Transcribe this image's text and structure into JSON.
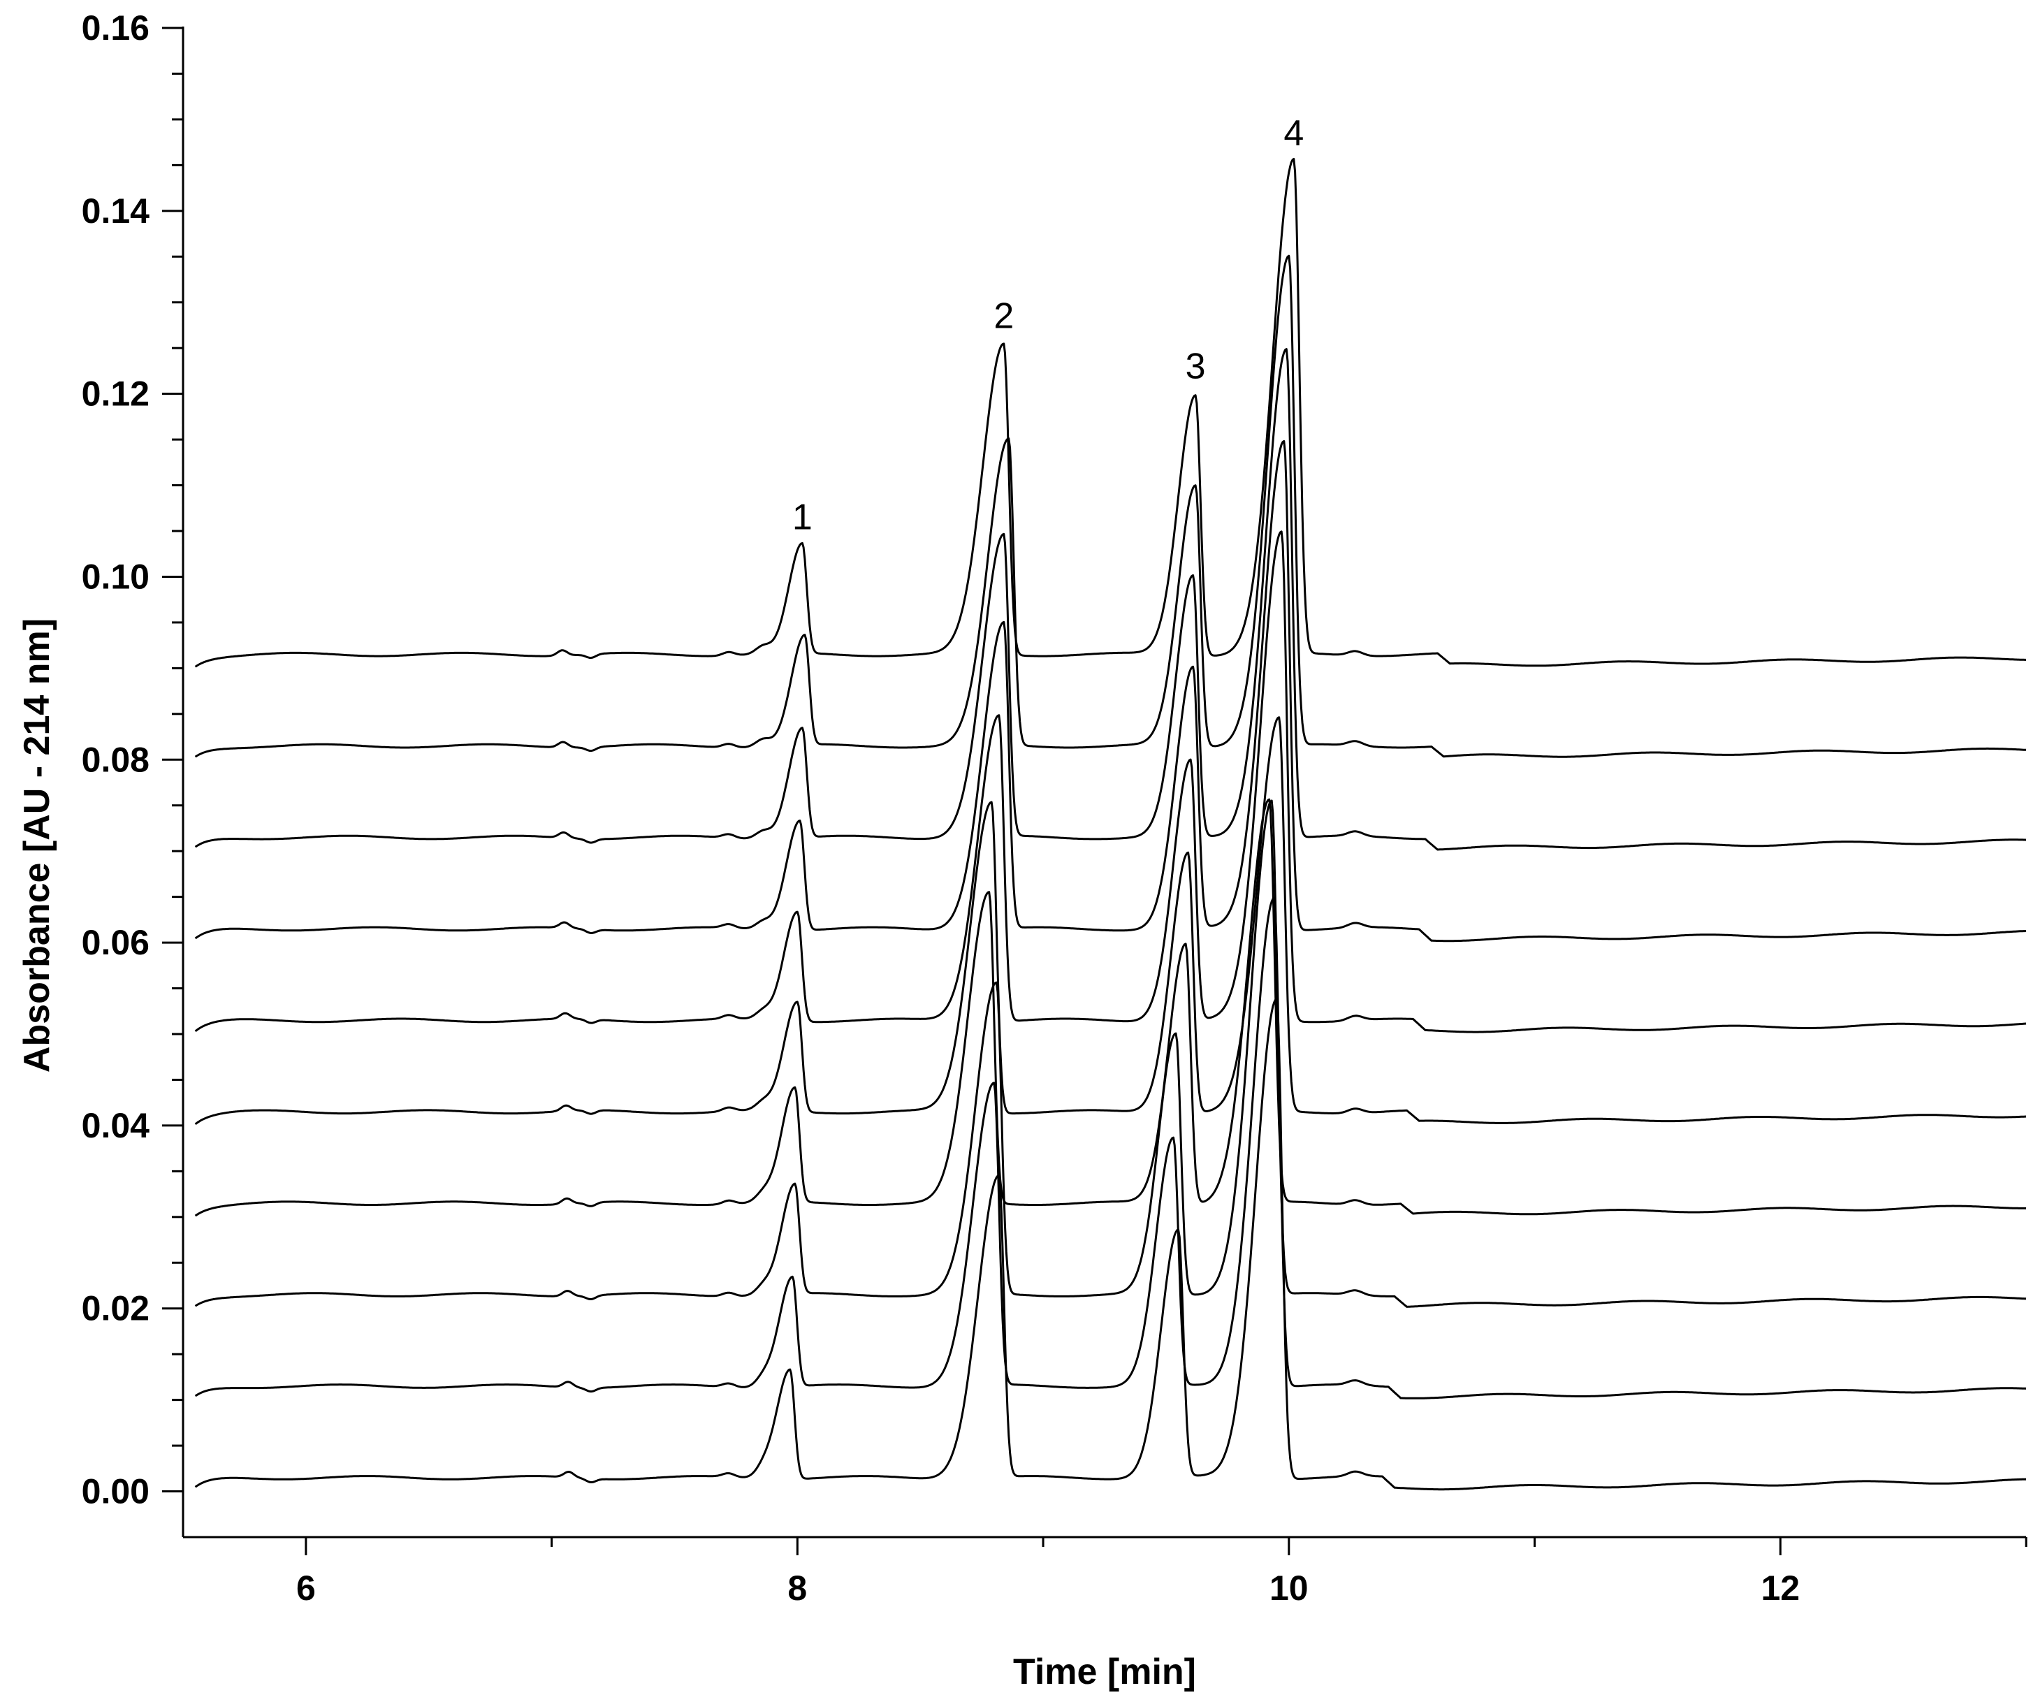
{
  "chart_data": {
    "type": "line",
    "title": "",
    "xlabel": "Time [min]",
    "ylabel": "Absorbance  [AU - 214 nm]",
    "xlim": [
      5.5,
      13.0
    ],
    "ylim": [
      -0.005,
      0.16
    ],
    "x_ticks": [
      "6",
      "8",
      "10",
      "12"
    ],
    "y_ticks": [
      "0.00",
      "0.02",
      "0.04",
      "0.06",
      "0.08",
      "0.10",
      "0.12",
      "0.14",
      "0.16"
    ],
    "grid": false,
    "legend": "none",
    "peak_labels": [
      {
        "label": "1",
        "x": 8.02
      },
      {
        "label": "2",
        "x": 8.84
      },
      {
        "label": "3",
        "x": 9.62
      },
      {
        "label": "4",
        "x": 10.02
      }
    ],
    "traces_note_units": "min / AU",
    "series": [
      {
        "baseline": 0.0015,
        "peaks": [
          [
            7.97,
            0.012
          ],
          [
            8.82,
            0.033
          ],
          [
            9.55,
            0.027
          ],
          [
            9.95,
            0.0525
          ]
        ]
      },
      {
        "baseline": 0.0115,
        "peaks": [
          [
            7.98,
            0.012
          ],
          [
            8.8,
            0.033
          ],
          [
            9.53,
            0.027
          ],
          [
            9.94,
            0.0535
          ]
        ]
      },
      {
        "baseline": 0.0215,
        "peaks": [
          [
            7.99,
            0.012
          ],
          [
            8.81,
            0.034
          ],
          [
            9.54,
            0.0285
          ],
          [
            9.93,
            0.054
          ]
        ]
      },
      {
        "baseline": 0.0315,
        "peaks": [
          [
            7.99,
            0.0125
          ],
          [
            8.78,
            0.034
          ],
          [
            9.58,
            0.0285
          ],
          [
            9.92,
            0.044
          ]
        ]
      },
      {
        "baseline": 0.0415,
        "peaks": [
          [
            8.0,
            0.012
          ],
          [
            8.79,
            0.034
          ],
          [
            9.59,
            0.0285
          ],
          [
            9.96,
            0.043
          ]
        ]
      },
      {
        "baseline": 0.0515,
        "peaks": [
          [
            8.0,
            0.012
          ],
          [
            8.82,
            0.0335
          ],
          [
            9.6,
            0.0285
          ],
          [
            9.97,
            0.0535
          ]
        ]
      },
      {
        "baseline": 0.0615,
        "peaks": [
          [
            8.01,
            0.012
          ],
          [
            8.84,
            0.0335
          ],
          [
            9.61,
            0.0285
          ],
          [
            9.98,
            0.0535
          ]
        ]
      },
      {
        "baseline": 0.0715,
        "peaks": [
          [
            8.02,
            0.012
          ],
          [
            8.84,
            0.033
          ],
          [
            9.61,
            0.0285
          ],
          [
            9.99,
            0.0535
          ]
        ]
      },
      {
        "baseline": 0.0815,
        "peaks": [
          [
            8.03,
            0.012
          ],
          [
            8.86,
            0.0335
          ],
          [
            9.62,
            0.0285
          ],
          [
            10.0,
            0.0535
          ]
        ]
      },
      {
        "baseline": 0.0915,
        "peaks": [
          [
            8.02,
            0.012
          ],
          [
            8.84,
            0.034
          ],
          [
            9.62,
            0.0285
          ],
          [
            10.02,
            0.054
          ]
        ]
      }
    ]
  }
}
